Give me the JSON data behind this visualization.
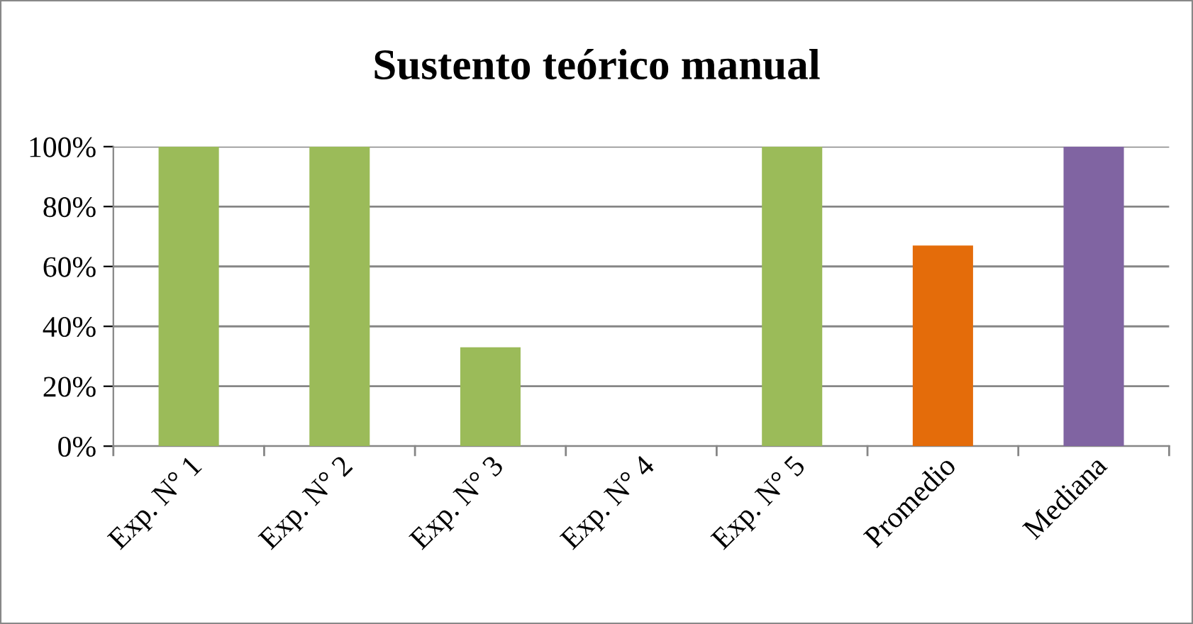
{
  "chart_data": {
    "type": "bar",
    "title": "Sustento teórico manual",
    "categories": [
      "Exp. N° 1",
      "Exp. N° 2",
      "Exp. N° 3",
      "Exp. N° 4",
      "Exp. N° 5",
      "Promedio",
      "Mediana"
    ],
    "values": [
      100,
      100,
      33,
      0,
      100,
      67,
      100
    ],
    "colors": [
      "#9bbb59",
      "#9bbb59",
      "#9bbb59",
      "#9bbb59",
      "#9bbb59",
      "#e46c0a",
      "#8064a2"
    ],
    "ylim": [
      0,
      100
    ],
    "yticks": [
      {
        "value": 0,
        "label": "0%"
      },
      {
        "value": 20,
        "label": "20%"
      },
      {
        "value": 40,
        "label": "40%"
      },
      {
        "value": 60,
        "label": "60%"
      },
      {
        "value": 80,
        "label": "80%"
      },
      {
        "value": 100,
        "label": "100%"
      }
    ],
    "grid": "y",
    "legend": false
  }
}
